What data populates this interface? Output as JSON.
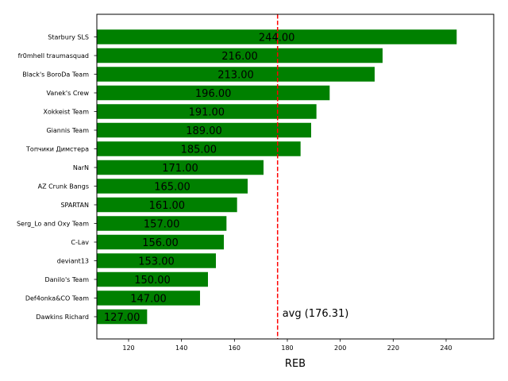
{
  "chart_data": {
    "type": "bar",
    "orientation": "horizontal",
    "categories": [
      "Starbury SLS",
      "fr0mhell traumasquad",
      "Black's BoroDa Team",
      "Vanek's Crew",
      "Xokkeist Team",
      "Giannis Team",
      "Топчики Димстера",
      "NarN",
      "AZ Crunk Bangs",
      "SPARTAN",
      "Serg_Lo and Oxy Team",
      "C-Lav",
      "deviant13",
      "Danilo's Team",
      "Def4onka&CO Team",
      "Dawkins Richard"
    ],
    "values": [
      244,
      216,
      213,
      196,
      191,
      189,
      185,
      171,
      165,
      161,
      157,
      156,
      153,
      150,
      147,
      127
    ],
    "value_labels": [
      "244.00",
      "216.00",
      "213.00",
      "196.00",
      "191.00",
      "189.00",
      "185.00",
      "171.00",
      "165.00",
      "161.00",
      "157.00",
      "156.00",
      "153.00",
      "150.00",
      "147.00",
      "127.00"
    ],
    "xlabel": "REB",
    "ylabel": "",
    "xlim": [
      108,
      258
    ],
    "xticks": [
      120,
      140,
      160,
      180,
      200,
      220,
      240
    ],
    "bar_color": "#008000",
    "average": {
      "value": 176.31,
      "label": "avg (176.31)",
      "color": "#ff0000",
      "style": "dashed"
    },
    "grid": false,
    "legend": "none"
  }
}
